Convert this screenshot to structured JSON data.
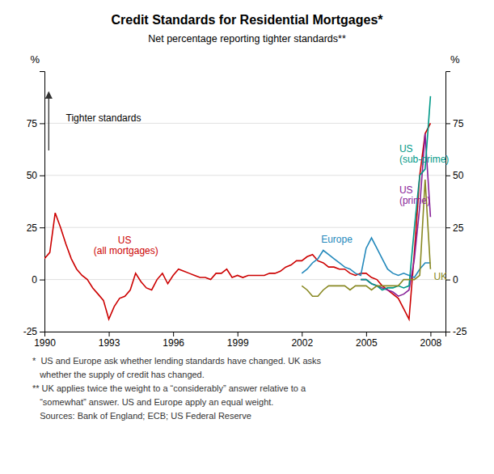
{
  "chart_data": {
    "type": "line",
    "title": "Credit Standards for Residential Mortgages*",
    "subtitle": "Net percentage reporting tighter standards**",
    "ylabel": "%",
    "y2label": "%",
    "annotation": "Tighter standards",
    "footnotes": [
      "*  US and Europe ask whether lending standards have changed. UK asks",
      "   whether the supply of credit has changed.",
      "** UK applies twice the weight to a “considerably” answer relative to a",
      "   “somewhat” answer. US and Europe apply an equal weight.",
      "   Sources: Bank of England; ECB; US Federal Reserve"
    ],
    "grid": true,
    "xlim": [
      1990,
      2008.7
    ],
    "xticks": [
      1990,
      1993,
      1996,
      1999,
      2002,
      2005,
      2008
    ],
    "ylim": [
      -25,
      100
    ],
    "yticks": [
      -25,
      0,
      25,
      50,
      75
    ],
    "y2lim": [
      -25,
      100
    ],
    "y2ticks": [
      -25,
      0,
      25,
      50,
      75
    ],
    "x": [
      1990,
      1990.25,
      1990.5,
      1990.75,
      1991,
      1991.25,
      1991.5,
      1991.75,
      1992,
      1992.25,
      1992.5,
      1992.75,
      1993,
      1993.25,
      1993.5,
      1993.75,
      1994,
      1994.25,
      1994.5,
      1994.75,
      1995,
      1995.25,
      1995.5,
      1995.75,
      1996,
      1996.25,
      1996.5,
      1996.75,
      1997,
      1997.25,
      1997.5,
      1997.75,
      1998,
      1998.25,
      1998.5,
      1998.75,
      1999,
      1999.25,
      1999.5,
      1999.75,
      2000,
      2000.25,
      2000.5,
      2000.75,
      2001,
      2001.25,
      2001.5,
      2001.75,
      2002,
      2002.25,
      2002.5,
      2002.75,
      2003,
      2003.25,
      2003.5,
      2003.75,
      2004,
      2004.25,
      2004.5,
      2004.75,
      2005,
      2005.25,
      2005.5,
      2005.75,
      2006,
      2006.25,
      2006.5,
      2006.75,
      2007,
      2007.25,
      2007.5,
      2007.75,
      2008
    ],
    "series": [
      {
        "name": "US\n(all mortgages)",
        "color": "#cc0000",
        "values": [
          10,
          13,
          32,
          25,
          17,
          10,
          5,
          2,
          0,
          -4,
          -7,
          -10,
          -19,
          -13,
          -9,
          -8,
          -5,
          3,
          -1,
          -4,
          -5,
          0,
          3,
          -2,
          2,
          5,
          4,
          3,
          2,
          1,
          1,
          0,
          3,
          3,
          5,
          1,
          2,
          1,
          2,
          2,
          2,
          2,
          3,
          3,
          4,
          6,
          7,
          9,
          9,
          11,
          12,
          9,
          8,
          6,
          6,
          5,
          5,
          3,
          2,
          3,
          3,
          1,
          0,
          -3,
          -5,
          -7,
          -9,
          -14,
          -19,
          13,
          50,
          70,
          75
        ]
      },
      {
        "name": "Europe",
        "color": "#2288bb",
        "values": [
          null,
          null,
          null,
          null,
          null,
          null,
          null,
          null,
          null,
          null,
          null,
          null,
          null,
          null,
          null,
          null,
          null,
          null,
          null,
          null,
          null,
          null,
          null,
          null,
          null,
          null,
          null,
          null,
          null,
          null,
          null,
          null,
          null,
          null,
          null,
          null,
          null,
          null,
          null,
          null,
          null,
          null,
          null,
          null,
          null,
          null,
          null,
          null,
          3,
          5,
          8,
          10,
          14,
          12,
          10,
          8,
          6,
          5,
          3,
          2,
          15,
          20,
          15,
          10,
          5,
          3,
          2,
          3,
          2,
          1,
          5,
          8,
          8
        ]
      },
      {
        "name": "US\n(prime)",
        "color": "#882299",
        "values": [
          null,
          null,
          null,
          null,
          null,
          null,
          null,
          null,
          null,
          null,
          null,
          null,
          null,
          null,
          null,
          null,
          null,
          null,
          null,
          null,
          null,
          null,
          null,
          null,
          null,
          null,
          null,
          null,
          null,
          null,
          null,
          null,
          null,
          null,
          null,
          null,
          null,
          null,
          null,
          null,
          null,
          null,
          null,
          null,
          null,
          null,
          null,
          null,
          null,
          null,
          null,
          null,
          null,
          null,
          null,
          null,
          null,
          null,
          null,
          0,
          0,
          -2,
          -3,
          -4,
          -5,
          -6,
          -8,
          -7,
          -5,
          10,
          35,
          70,
          30
        ]
      },
      {
        "name": "US\n(sub-prime)",
        "color": "#009988",
        "values": [
          null,
          null,
          null,
          null,
          null,
          null,
          null,
          null,
          null,
          null,
          null,
          null,
          null,
          null,
          null,
          null,
          null,
          null,
          null,
          null,
          null,
          null,
          null,
          null,
          null,
          null,
          null,
          null,
          null,
          null,
          null,
          null,
          null,
          null,
          null,
          null,
          null,
          null,
          null,
          null,
          null,
          null,
          null,
          null,
          null,
          null,
          null,
          null,
          null,
          null,
          null,
          null,
          null,
          null,
          null,
          null,
          null,
          null,
          null,
          0,
          0,
          -2,
          -3,
          -5,
          -4,
          -4,
          -3,
          -4,
          -3,
          25,
          50,
          53,
          88
        ]
      },
      {
        "name": "UK",
        "color": "#888822",
        "values": [
          null,
          null,
          null,
          null,
          null,
          null,
          null,
          null,
          null,
          null,
          null,
          null,
          null,
          null,
          null,
          null,
          null,
          null,
          null,
          null,
          null,
          null,
          null,
          null,
          null,
          null,
          null,
          null,
          null,
          null,
          null,
          null,
          null,
          null,
          null,
          null,
          null,
          null,
          null,
          null,
          null,
          null,
          null,
          null,
          null,
          null,
          null,
          null,
          -3,
          -5,
          -8,
          -8,
          -5,
          -3,
          -3,
          -3,
          -3,
          -5,
          -3,
          -3,
          -3,
          -5,
          -3,
          -3,
          -3,
          -3,
          -3,
          0,
          0,
          0,
          2,
          48,
          5
        ]
      }
    ]
  }
}
